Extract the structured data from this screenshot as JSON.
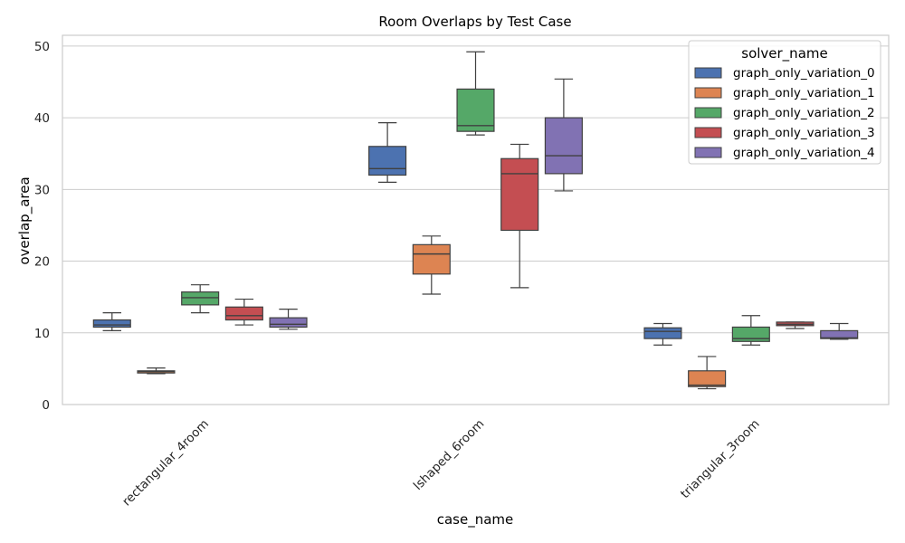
{
  "chart_data": {
    "type": "box",
    "title": "Room Overlaps by Test Case",
    "xlabel": "case_name",
    "ylabel": "overlap_area",
    "categories": [
      "rectangular_4room",
      "lshaped_6room",
      "triangular_3room"
    ],
    "ylim": [
      0,
      51.5
    ],
    "yticks": [
      0,
      10,
      20,
      30,
      40,
      50
    ],
    "grid": "y",
    "legend": {
      "title": "solver_name",
      "placement": "top-right"
    },
    "series": [
      {
        "name": "graph_only_variation_0",
        "color": "#4c72b0",
        "boxes": [
          {
            "whisker_low": 10.3,
            "q1": 10.8,
            "median": 11.1,
            "q3": 11.8,
            "whisker_high": 12.8
          },
          {
            "whisker_low": 31.0,
            "q1": 32.0,
            "median": 32.9,
            "q3": 36.0,
            "whisker_high": 39.3
          },
          {
            "whisker_low": 8.3,
            "q1": 9.2,
            "median": 10.2,
            "q3": 10.7,
            "whisker_high": 11.3
          }
        ]
      },
      {
        "name": "graph_only_variation_1",
        "color": "#dd8452",
        "boxes": [
          {
            "whisker_low": 4.3,
            "q1": 4.4,
            "median": 4.6,
            "q3": 4.7,
            "whisker_high": 5.1
          },
          {
            "whisker_low": 15.4,
            "q1": 18.2,
            "median": 21.0,
            "q3": 22.3,
            "whisker_high": 23.5
          },
          {
            "whisker_low": 2.2,
            "q1": 2.5,
            "median": 2.7,
            "q3": 4.7,
            "whisker_high": 6.7
          }
        ]
      },
      {
        "name": "graph_only_variation_2",
        "color": "#55a868",
        "boxes": [
          {
            "whisker_low": 12.8,
            "q1": 13.9,
            "median": 14.9,
            "q3": 15.7,
            "whisker_high": 16.7
          },
          {
            "whisker_low": 37.6,
            "q1": 38.1,
            "median": 38.9,
            "q3": 44.0,
            "whisker_high": 49.2
          },
          {
            "whisker_low": 8.3,
            "q1": 8.8,
            "median": 9.2,
            "q3": 10.8,
            "whisker_high": 12.4
          }
        ]
      },
      {
        "name": "graph_only_variation_3",
        "color": "#c44e52",
        "boxes": [
          {
            "whisker_low": 11.1,
            "q1": 11.8,
            "median": 12.4,
            "q3": 13.6,
            "whisker_high": 14.7
          },
          {
            "whisker_low": 16.3,
            "q1": 24.3,
            "median": 32.2,
            "q3": 34.3,
            "whisker_high": 36.3
          },
          {
            "whisker_low": 10.6,
            "q1": 11.0,
            "median": 11.2,
            "q3": 11.5,
            "whisker_high": 11.5
          }
        ]
      },
      {
        "name": "graph_only_variation_4",
        "color": "#8172b3",
        "boxes": [
          {
            "whisker_low": 10.5,
            "q1": 10.8,
            "median": 11.2,
            "q3": 12.1,
            "whisker_high": 13.3
          },
          {
            "whisker_low": 29.8,
            "q1": 32.2,
            "median": 34.7,
            "q3": 40.0,
            "whisker_high": 45.4
          },
          {
            "whisker_low": 9.1,
            "q1": 9.2,
            "median": 9.3,
            "q3": 10.3,
            "whisker_high": 11.3
          }
        ]
      }
    ]
  }
}
